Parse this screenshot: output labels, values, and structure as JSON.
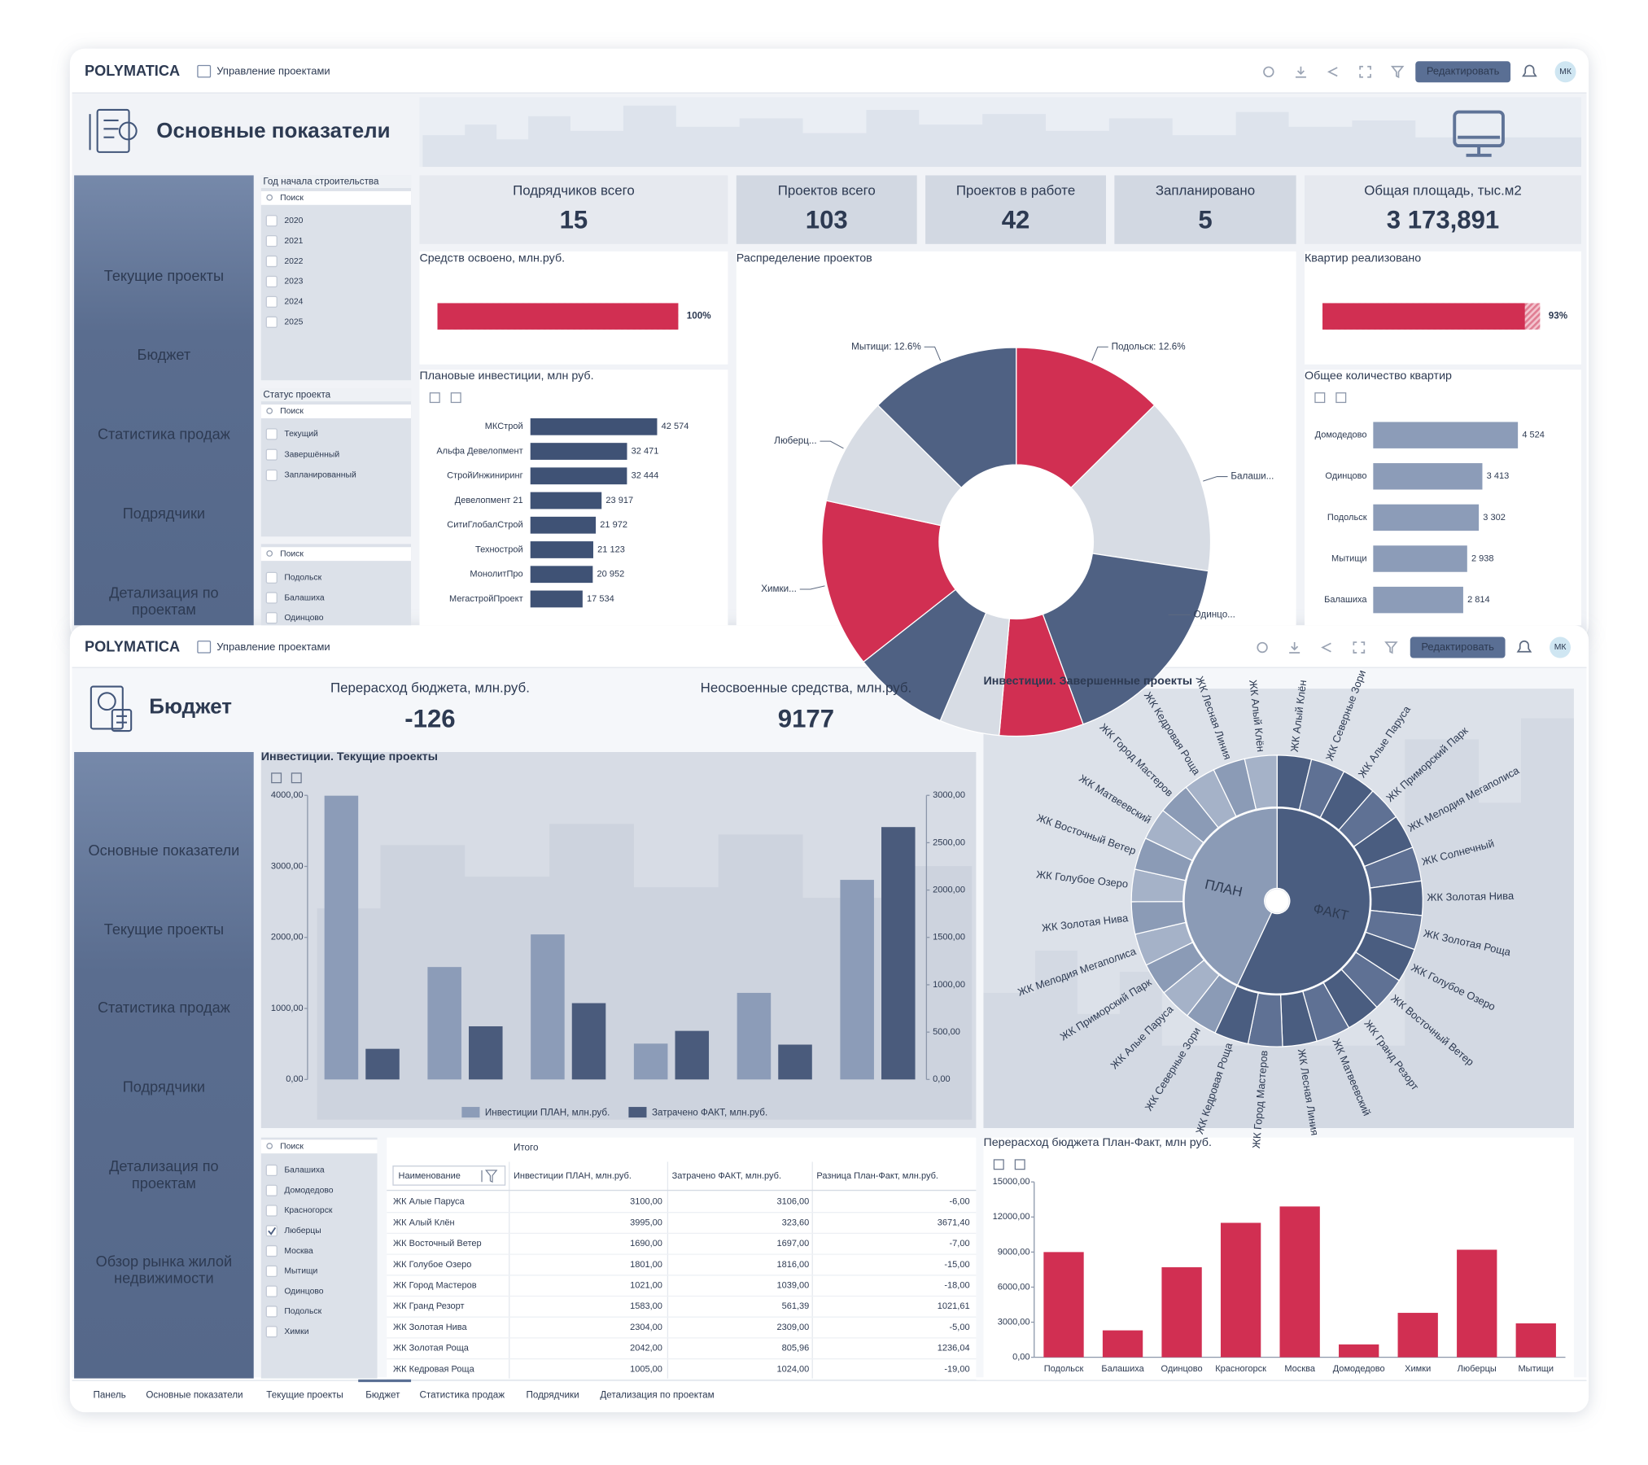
{
  "header": {
    "logo": "POLYMATICA",
    "breadcrumb": "Управление проектами",
    "edit_button": "Редактировать",
    "avatar": "МК"
  },
  "main": {
    "title": "Основные показатели",
    "nav": [
      "Текущие проекты",
      "Бюджет",
      "Статистика продаж",
      "Подрядчики",
      "Детализация по проектам"
    ],
    "filters": [
      {
        "title": "Год начала строительства",
        "search": "Поиск",
        "options": [
          {
            "label": "2020",
            "checked": false
          },
          {
            "label": "2021",
            "checked": false
          },
          {
            "label": "2022",
            "checked": false
          },
          {
            "label": "2023",
            "checked": false
          },
          {
            "label": "2024",
            "checked": false
          },
          {
            "label": "2025",
            "checked": false
          }
        ]
      },
      {
        "title": "Статус проекта",
        "search": "Поиск",
        "options": [
          {
            "label": "Текущий",
            "checked": false
          },
          {
            "label": "Завершённый",
            "checked": false
          },
          {
            "label": "Запланированный",
            "checked": false
          }
        ]
      },
      {
        "search": "Поиск",
        "options": [
          {
            "label": "Подольск",
            "checked": false
          },
          {
            "label": "Балашиха",
            "checked": false
          },
          {
            "label": "Одинцово",
            "checked": false
          }
        ]
      }
    ],
    "kpis": [
      {
        "label": "Подрядчиков всего",
        "value": "15"
      },
      {
        "label": "Проектов всего",
        "value": "103"
      },
      {
        "label": "Проектов в работе",
        "value": "42"
      },
      {
        "label": "Запланировано",
        "value": "5"
      },
      {
        "label": "Общая площадь, тыс.м2",
        "value": "3 173,891"
      }
    ],
    "funds": {
      "type": "progress",
      "title": "Средств освоено, млн.руб.",
      "value": 100,
      "value_label": "100%",
      "xlim": [
        0,
        100
      ],
      "color": "#d12f52"
    },
    "apartments_sold": {
      "type": "progress",
      "title": "Квартир реализовано",
      "value": 93,
      "value_label": "93%",
      "xlim": [
        0,
        100
      ],
      "color": "#d12f52"
    },
    "distribution": {
      "type": "pie",
      "title": "Распределение проектов",
      "categories": [
        "Подольск: 12.6%",
        "Балаши...",
        "Одинцо...",
        null,
        null,
        null,
        "Химки...",
        "Люберц...",
        "Мытищи: 12.6%"
      ],
      "values": [
        12.6,
        14.8,
        17,
        7,
        5,
        8,
        14,
        9,
        12.6
      ],
      "colors": [
        "#d12f52",
        "#d7dce4",
        "#4f6183",
        "#d12f52",
        "#d7dce4",
        "#4f6183",
        "#d12f52",
        "#d7dce4",
        "#4f6183"
      ]
    },
    "planned_investments": {
      "type": "hbar",
      "title": "Плановые инвестиции, млн руб.",
      "categories": [
        "МКСтрой",
        "Альфа Девелопмент",
        "СтройИнжиниринг",
        "Девелопмент 21",
        "СитиГлобалСтрой",
        "Технострой",
        "МонолитПро",
        "МегастройПроект"
      ],
      "values": [
        42574,
        32471,
        32444,
        23917,
        21972,
        21123,
        20952,
        17534
      ],
      "value_labels": [
        "42 574",
        "32 471",
        "32 444",
        "23 917",
        "21 972",
        "21 123",
        "20 952",
        "17 534"
      ],
      "color": "#3f5275"
    },
    "apartments_total": {
      "type": "hbar",
      "title": "Общее количество квартир",
      "categories": [
        "Домодедово",
        "Одинцово",
        "Подольск",
        "Мытищи",
        "Балашиха"
      ],
      "values": [
        4524,
        3413,
        3302,
        2938,
        2814
      ],
      "value_labels": [
        "4 524",
        "3 413",
        "3 302",
        "2 938",
        "2 814"
      ],
      "color": "#8c9cb8"
    }
  },
  "budget": {
    "title": "Бюджет",
    "kpis": [
      {
        "label": "Перерасход бюджета, млн.руб.",
        "value": "-126"
      },
      {
        "label": "Неосвоенные средства, млн.руб.",
        "value": "9177"
      }
    ],
    "nav": [
      "Основные показатели",
      "Текущие проекты",
      "Статистика продаж",
      "Подрядчики",
      "Детализация по проектам",
      "Обзор рынка жилой недвижимости"
    ],
    "investments": {
      "type": "bar",
      "title": "Инвестиции. Текущие проекты",
      "categories": [
        null,
        null,
        null,
        null,
        null,
        null
      ],
      "series": [
        {
          "name": "Инвестиции ПЛАН, млн.руб.",
          "color": "#8c9cb8",
          "values": [
            3995,
            1583,
            2042,
            505,
            1219,
            2810
          ]
        },
        {
          "name": "Затрачено ФАКТ, млн.руб.",
          "color": "#4a5b7c",
          "axis": "y2",
          "values": [
            323.6,
            561.39,
            805.96,
            513,
            368,
            2665
          ]
        }
      ],
      "ylim": [
        0,
        4000
      ],
      "yticks": [
        {
          "value": 0,
          "label": "0,00"
        },
        {
          "value": 1000,
          "label": "1000,00"
        },
        {
          "value": 2000,
          "label": "2000,00"
        },
        {
          "value": 3000,
          "label": "3000,00"
        },
        {
          "value": 4000,
          "label": "4000,00"
        }
      ],
      "y2lim": [
        0,
        3000
      ],
      "y2ticks": [
        {
          "value": 0,
          "label": "0,00"
        },
        {
          "value": 500,
          "label": "500,00"
        },
        {
          "value": 1000,
          "label": "1000,00"
        },
        {
          "value": 1500,
          "label": "1500,00"
        },
        {
          "value": 2000,
          "label": "2000,00"
        },
        {
          "value": 2500,
          "label": "2500,00"
        },
        {
          "value": 3000,
          "label": "3000,00"
        }
      ]
    },
    "completed": {
      "type": "sunburst",
      "title": "Инвестиции. Завершенные проекты",
      "nodes": [
        {
          "name": "ФАКТ",
          "value": 57,
          "color": "#4a5d80",
          "children": [
            "ЖК Алый Клён",
            "ЖК Северные Зори",
            "ЖК Алые Паруса",
            "ЖК Приморский Парк",
            "ЖК Мелодия Мегаполиса",
            "ЖК Солнечный",
            "ЖК Золотая Нива",
            "ЖК Золотая Роща",
            "ЖК Голубое Озеро",
            "ЖК Восточный Ветер",
            "ЖК Гранд Резорт",
            "ЖК Матвеевский",
            "ЖК Лесная Линия",
            "ЖК Город Мастеров",
            "ЖК Кедровая Роща"
          ]
        },
        {
          "name": "ПЛАН",
          "value": 43,
          "color": "#8b9bb6",
          "children": [
            "ЖК Северные Зори",
            "ЖК Алые Паруса",
            "ЖК Приморский Парк",
            "ЖК Мелодия Мегаполиса",
            "ЖК Золотая Нива",
            "ЖК Голубое Озеро",
            "ЖК Восточный Ветер",
            "ЖК Матвеевский",
            "ЖК Город Мастеров",
            "ЖК Кедровая Роща",
            "ЖК Лесная Линия",
            "ЖК Алый Клён"
          ]
        }
      ]
    },
    "filter": {
      "search": "Поиск",
      "options": [
        {
          "label": "Балашиха",
          "checked": false
        },
        {
          "label": "Домодедово",
          "checked": false
        },
        {
          "label": "Красногорск",
          "checked": false
        },
        {
          "label": "Люберцы",
          "checked": true
        },
        {
          "label": "Москва",
          "checked": false
        },
        {
          "label": "Мытищи",
          "checked": false
        },
        {
          "label": "Одинцово",
          "checked": false
        },
        {
          "label": "Подольск",
          "checked": false
        },
        {
          "label": "Химки",
          "checked": false
        }
      ]
    },
    "table": {
      "caption": "Итого",
      "columns": [
        "Наименование",
        "Инвестиции ПЛАН, млн.руб.",
        "Затрачено ФАКТ, млн.руб.",
        "Разница План-Факт, млн.руб."
      ],
      "rows": [
        [
          "ЖК Алые Паруса",
          "3100,00",
          "3106,00",
          "-6,00"
        ],
        [
          "ЖК Алый Клён",
          "3995,00",
          "323,60",
          "3671,40"
        ],
        [
          "ЖК Восточный Ветер",
          "1690,00",
          "1697,00",
          "-7,00"
        ],
        [
          "ЖК Голубое Озеро",
          "1801,00",
          "1816,00",
          "-15,00"
        ],
        [
          "ЖК Город Мастеров",
          "1021,00",
          "1039,00",
          "-18,00"
        ],
        [
          "ЖК Гранд Резорт",
          "1583,00",
          "561,39",
          "1021,61"
        ],
        [
          "ЖК Золотая Нива",
          "2304,00",
          "2309,00",
          "-5,00"
        ],
        [
          "ЖК Золотая Роща",
          "2042,00",
          "805,96",
          "1236,04"
        ],
        [
          "ЖК Кедровая Роща",
          "1005,00",
          "1024,00",
          "-19,00"
        ]
      ]
    },
    "overrun": {
      "type": "bar",
      "title": "Перерасход бюджета План-Факт, млн руб.",
      "categories": [
        "Подольск",
        "Балашиха",
        "Одинцово",
        "Красногорск",
        "Москва",
        "Домодедово",
        "Химки",
        "Люберцы",
        "Мытищи"
      ],
      "values": [
        9000,
        2300,
        7700,
        11500,
        12900,
        1100,
        3800,
        9200,
        2900
      ],
      "color": "#d12f52",
      "ylim": [
        0,
        15000
      ],
      "yticks": [
        {
          "value": 0,
          "label": "0,00"
        },
        {
          "value": 3000,
          "label": "3000,00"
        },
        {
          "value": 6000,
          "label": "6000,00"
        },
        {
          "value": 9000,
          "label": "9000,00"
        },
        {
          "value": 12000,
          "label": "12000,00"
        },
        {
          "value": 15000,
          "label": "15000,00"
        }
      ]
    }
  },
  "tabs": {
    "items": [
      "Панель",
      "Основные показатели",
      "Текущие проекты",
      "Бюджет",
      "Статистика продаж",
      "Подрядчики",
      "Детализация по проектам"
    ],
    "active": "Бюджет"
  }
}
